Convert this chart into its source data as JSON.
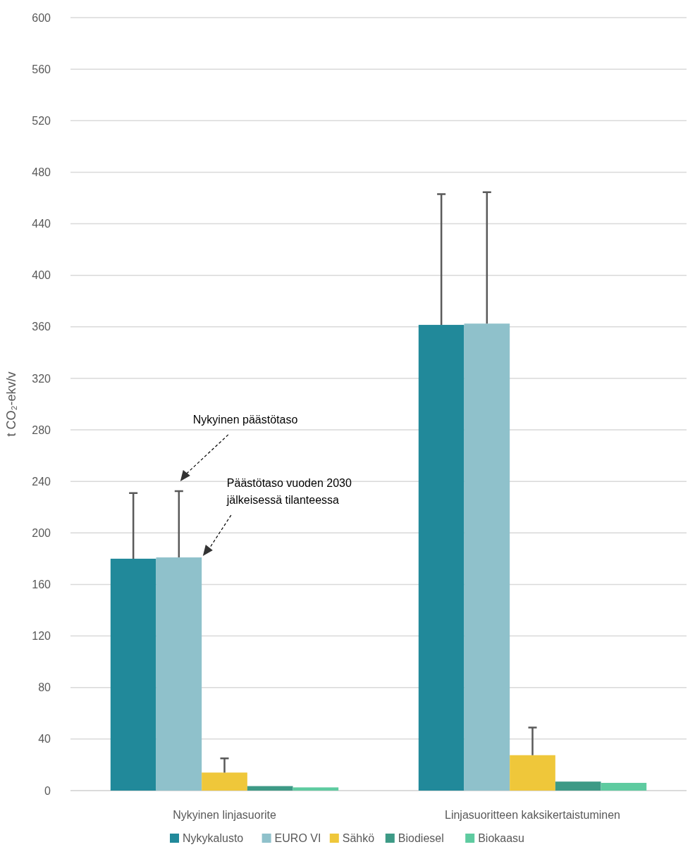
{
  "chart_data": {
    "type": "bar",
    "ylabel": "t CO₂-ekv/v",
    "categories": [
      "Nykyinen linjasuorite",
      "Linjasuoritteen kaksikertaistuminen"
    ],
    "series": [
      {
        "name": "Nykykalusto",
        "color": "#21899a",
        "values": [
          180,
          361.5
        ],
        "errors": [
          [
            180,
            231
          ],
          [
            361.5,
            463
          ]
        ]
      },
      {
        "name": "EURO VI",
        "color": "#8fc1cb",
        "values": [
          181,
          362.5
        ],
        "errors": [
          [
            181,
            232.5
          ],
          [
            362.5,
            464.5
          ]
        ]
      },
      {
        "name": "Sähkö",
        "color": "#efc73a",
        "values": [
          14,
          27.5
        ],
        "errors": [
          [
            14,
            25
          ],
          [
            27.5,
            49
          ]
        ]
      },
      {
        "name": "Biodiesel",
        "color": "#3d9a86",
        "values": [
          3.5,
          7
        ],
        "errors": [
          null,
          null
        ]
      },
      {
        "name": "Biokaasu",
        "color": "#5ecba0",
        "values": [
          2.5,
          6
        ],
        "errors": [
          null,
          null
        ]
      }
    ],
    "ylim": [
      0,
      600
    ],
    "yticks": [
      0,
      40,
      80,
      120,
      160,
      200,
      240,
      280,
      320,
      360,
      400,
      440,
      480,
      520,
      560,
      600
    ],
    "grid": "y",
    "legend": "bottom",
    "annotations": [
      "Nykyinen päästötaso",
      "Päästötaso vuoden 2030\njälkeisessä tilanteessa"
    ]
  }
}
